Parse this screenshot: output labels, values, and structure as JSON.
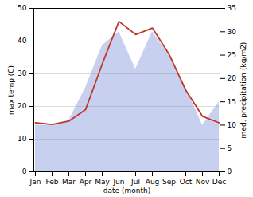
{
  "chart_data": {
    "type": "line",
    "categories": [
      "Jan",
      "Feb",
      "Mar",
      "Apr",
      "May",
      "Jun",
      "Jul",
      "Aug",
      "Sep",
      "Oct",
      "Nov",
      "Dec"
    ],
    "xlabel": "date (month)",
    "ylabel": "max temp (C)",
    "y2label": "med. precipitation (kg/m2)",
    "ylim": [
      0,
      50
    ],
    "yticks": [
      0,
      10,
      20,
      30,
      40,
      50
    ],
    "y2lim": [
      0,
      35
    ],
    "y2ticks": [
      0,
      5,
      10,
      15,
      20,
      25,
      30,
      35
    ],
    "grid": true,
    "series": [
      {
        "type": "area",
        "axis": "y2",
        "color": "#c8d0f0",
        "values": [
          10,
          10,
          11,
          18,
          27,
          30,
          22,
          30,
          25,
          18,
          10,
          15
        ]
      },
      {
        "type": "line",
        "color": "#c0392b",
        "values": [
          15,
          14.5,
          15.5,
          19,
          33,
          46,
          42,
          44,
          36,
          25,
          17,
          15
        ]
      }
    ]
  }
}
